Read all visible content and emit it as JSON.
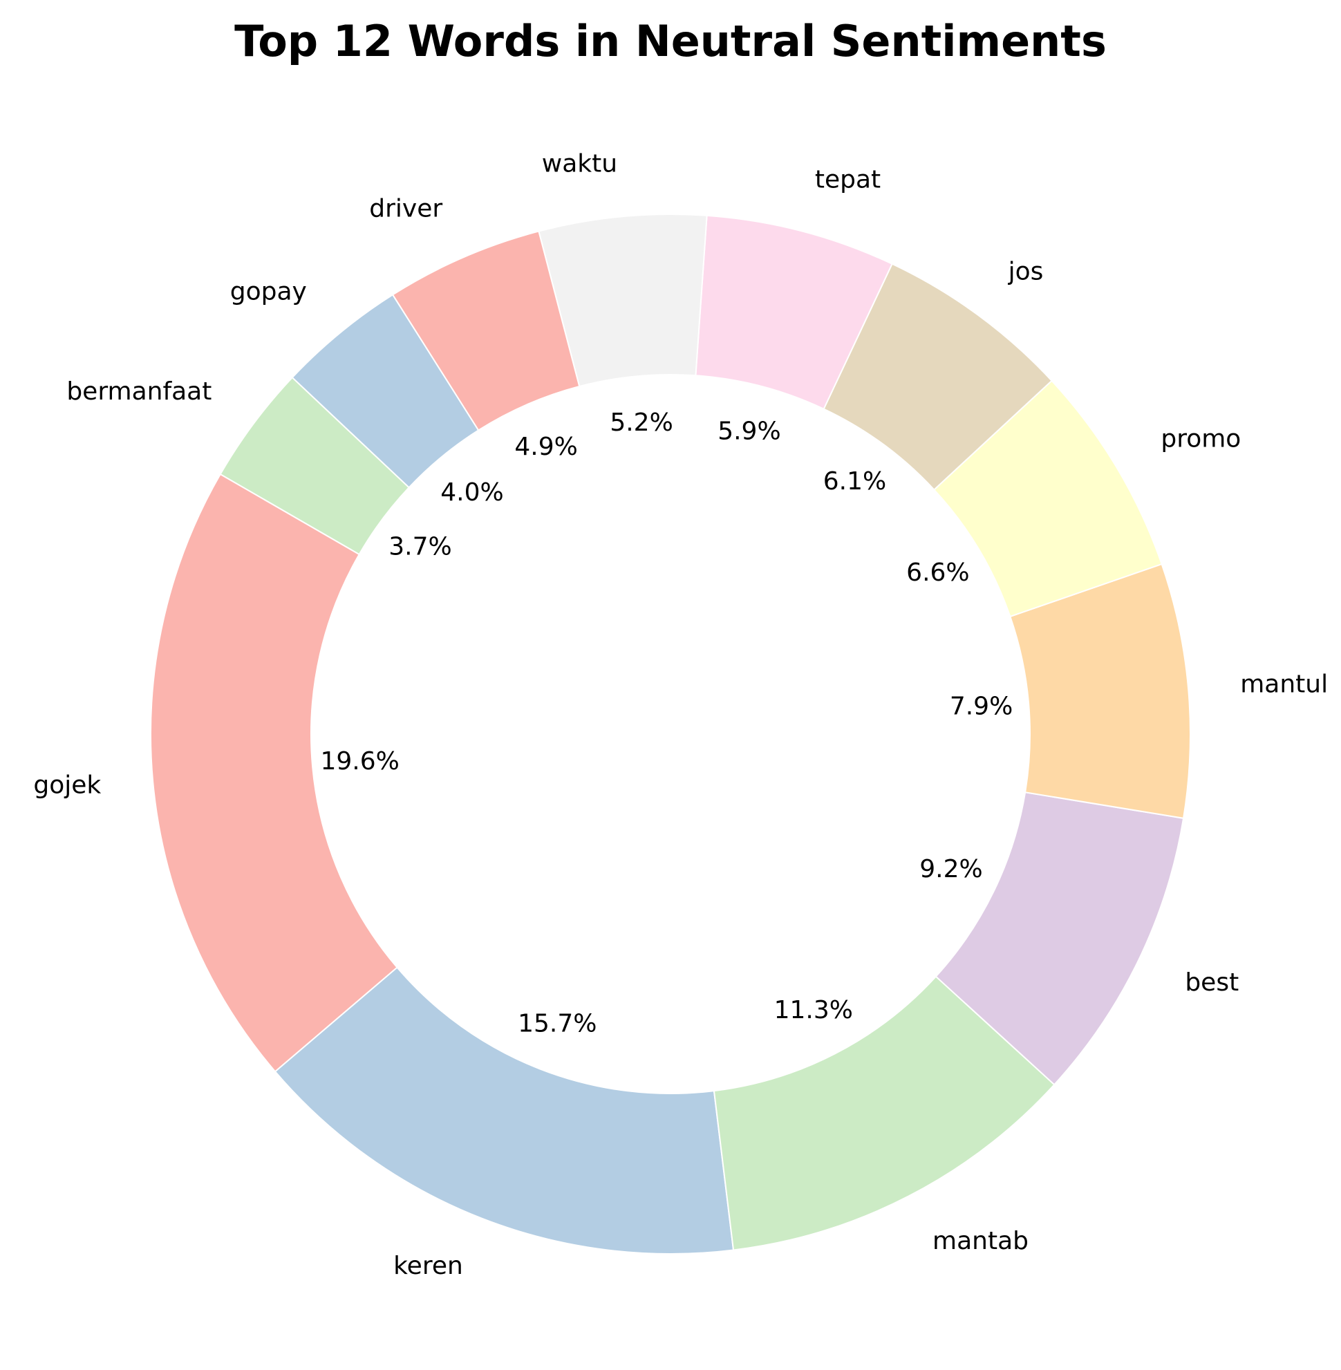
{
  "chart_data": {
    "type": "pie",
    "style": "donut",
    "title": "Top 12 Words in Neutral Sentiments",
    "categories": [
      "gojek",
      "keren",
      "mantab",
      "best",
      "mantul",
      "promo",
      "jos",
      "tepat",
      "waktu",
      "driver",
      "gopay",
      "bermanfaat"
    ],
    "values": [
      19.6,
      15.7,
      11.3,
      9.2,
      7.9,
      6.6,
      6.1,
      5.9,
      5.2,
      4.9,
      4.0,
      3.7
    ],
    "value_labels": [
      "19.6%",
      "15.7%",
      "11.3%",
      "9.2%",
      "7.9%",
      "6.6%",
      "6.1%",
      "5.9%",
      "5.2%",
      "4.9%",
      "4.0%",
      "3.7%"
    ],
    "colors": [
      "#fbb4ae",
      "#b3cde3",
      "#ccebc5",
      "#decbe4",
      "#fed9a6",
      "#ffffcc",
      "#e5d8bd",
      "#fddaec",
      "#f2f2f2",
      "#fbb4ae",
      "#b3cde3",
      "#ccebc5"
    ],
    "start_angle_deg": 150,
    "direction": "counterclockwise",
    "legend": "none"
  }
}
